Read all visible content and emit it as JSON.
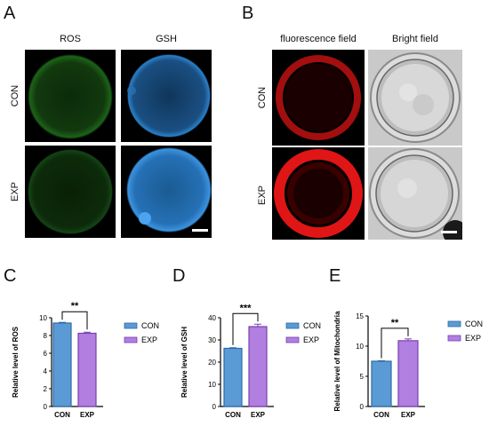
{
  "panel_A": {
    "label": "A",
    "columns": [
      "ROS",
      "GSH"
    ],
    "rows": [
      "CON",
      "EXP"
    ]
  },
  "panel_B": {
    "label": "B",
    "columns": [
      "fluorescence field",
      "Bright field"
    ],
    "rows": [
      "CON",
      "EXP"
    ]
  },
  "colors": {
    "con": "#5b9bd5",
    "con_edge": "#2e6aa8",
    "exp": "#b07fe0",
    "exp_edge": "#7a3fb0",
    "ros_stain": "#1f6e1a",
    "gsh_stain": "#2a7fc9",
    "fluor_stain": "#e01010"
  },
  "chart_data": [
    {
      "panel": "C",
      "type": "bar",
      "categories": [
        "CON",
        "EXP"
      ],
      "values": [
        9.4,
        8.25
      ],
      "errors": [
        0.08,
        0.12
      ],
      "ylabel": "Relative level of ROS",
      "ylim": [
        0,
        10
      ],
      "yticks": [
        "0",
        "2",
        "4",
        "6",
        "8",
        "10"
      ],
      "significance": "**",
      "legend": [
        "CON",
        "EXP"
      ]
    },
    {
      "panel": "D",
      "type": "bar",
      "categories": [
        "CON",
        "EXP"
      ],
      "values": [
        26.2,
        36.0
      ],
      "errors": [
        0.3,
        1.1
      ],
      "ylabel": "Relative level of GSH",
      "ylim": [
        0,
        40
      ],
      "yticks": [
        "0",
        "10",
        "20",
        "30",
        "40"
      ],
      "significance": "***",
      "legend": [
        "CON",
        "EXP"
      ]
    },
    {
      "panel": "E",
      "type": "bar",
      "categories": [
        "CON",
        "EXP"
      ],
      "values": [
        7.5,
        10.9
      ],
      "errors": [
        0.08,
        0.3
      ],
      "ylabel": "Relative level of Mitochondria",
      "ylim": [
        0,
        15
      ],
      "yticks": [
        "0",
        "5",
        "10",
        "15"
      ],
      "significance": "**",
      "legend": [
        "CON",
        "EXP"
      ]
    }
  ]
}
